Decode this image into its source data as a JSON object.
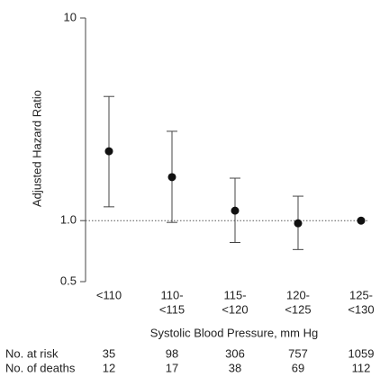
{
  "chart_data": {
    "type": "errorbar",
    "y_label": "Adjusted Hazard Ratio",
    "x_label": "Systolic Blood Pressure, mm Hg",
    "categories": [
      [
        "<110"
      ],
      [
        "110-",
        "<115"
      ],
      [
        "115-",
        "<120"
      ],
      [
        "120-",
        "<125"
      ],
      [
        "125-",
        "<130"
      ]
    ],
    "series": [
      {
        "color": "#111111",
        "values": [
          2.2,
          1.64,
          1.12,
          0.97,
          1.0
        ],
        "lower": [
          1.17,
          0.98,
          0.78,
          0.72,
          null
        ],
        "upper": [
          4.1,
          2.76,
          1.62,
          1.32,
          null
        ]
      }
    ],
    "log_y": true,
    "ylim": [
      0.5,
      10
    ],
    "yticks": [
      {
        "value": 10,
        "label": "10"
      },
      {
        "value": 1,
        "label": "1.0"
      },
      0.5
    ],
    "reference_line": 1,
    "risk_table": [
      {
        "label": "No. at risk",
        "values": [
          35,
          98,
          306,
          757,
          1059
        ]
      },
      {
        "label": "No. of deaths",
        "values": [
          12,
          17,
          38,
          69,
          112
        ]
      }
    ]
  }
}
